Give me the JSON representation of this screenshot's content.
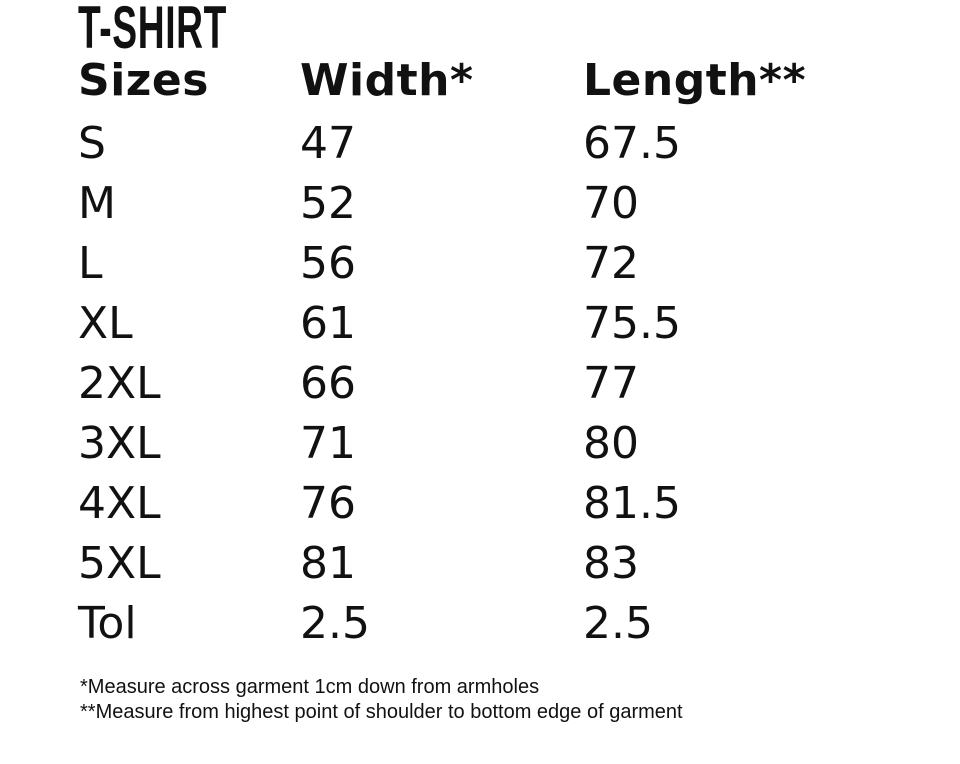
{
  "title": "T-SHIRT",
  "headers": [
    "Sizes",
    "Width*",
    "Length**"
  ],
  "rows": [
    [
      "S",
      "47",
      "67.5"
    ],
    [
      "M",
      "52",
      "70"
    ],
    [
      "L",
      "56",
      "72"
    ],
    [
      "XL",
      "61",
      "75.5"
    ],
    [
      "2XL",
      "66",
      "77"
    ],
    [
      "3XL",
      "71",
      "80"
    ],
    [
      "4XL",
      "76",
      "81.5"
    ],
    [
      "5XL",
      "81",
      "83"
    ],
    [
      "Tol",
      "2.5",
      "2.5"
    ]
  ],
  "notes": [
    "*Measure across garment 1cm down from armholes",
    "**Measure from highest point of shoulder to bottom edge of garment"
  ]
}
